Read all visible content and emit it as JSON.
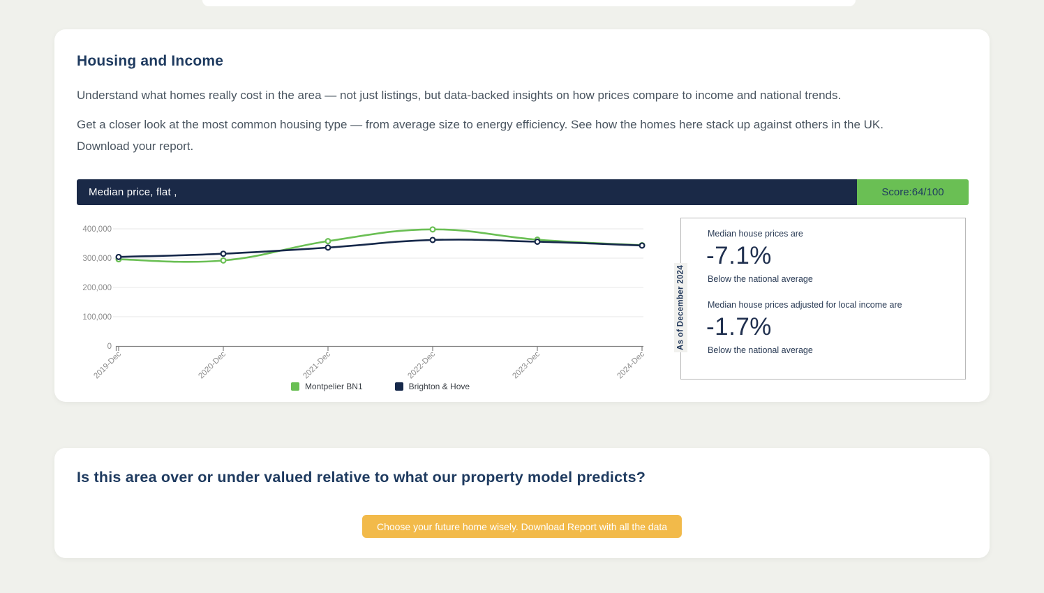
{
  "page": {
    "background": "#f0f1ec"
  },
  "housing_card": {
    "title": "Housing and Income",
    "intro_paragraphs": [
      "Understand what homes really cost in the area — not just listings, but data-backed insights on how prices compare to income and national trends.",
      "Get a closer look at the most common housing type — from average size to energy efficiency. See how the homes here stack up against others in the UK. Download your report."
    ],
    "chart_bar": {
      "label": "Median price, flat ,",
      "score_label": "Score:64/100",
      "bar_color": "#1a2947",
      "score_color": "#6abf54"
    },
    "stats_panel": {
      "as_of_label": "As of December 2024",
      "stats": [
        {
          "intro": "Median house prices are",
          "value": "-7.1%",
          "caption": "Below the national average"
        },
        {
          "intro": "Median house prices adjusted for local income are",
          "value": "-1.7%",
          "caption": "Below the national average"
        }
      ]
    }
  },
  "chart_data": {
    "type": "line",
    "title": "Median price, flat",
    "categories": [
      "2019-Dec",
      "2020-Dec",
      "2021-Dec",
      "2022-Dec",
      "2023-Dec",
      "2024-Dec"
    ],
    "series": [
      {
        "name": "Montpelier BN1",
        "color": "#6abf54",
        "values": [
          296000,
          292000,
          358000,
          398000,
          363000,
          344000
        ]
      },
      {
        "name": "Brighton & Hove",
        "color": "#16284a",
        "values": [
          304000,
          315000,
          336000,
          362000,
          356000,
          343000
        ]
      }
    ],
    "yticks": [
      0,
      100000,
      200000,
      300000,
      400000
    ],
    "ytick_labels": [
      "0",
      "100,000",
      "200,000",
      "300,000",
      "400,000"
    ],
    "ylim": [
      0,
      480000
    ],
    "grid": true,
    "legend_position": "bottom",
    "axis_color": "#808080",
    "grid_color": "#e7e7e7",
    "tick_label_color": "#8b8b8b"
  },
  "valuation_card": {
    "title": "Is this area over or under valued relative to what our property model predicts?",
    "button_label": "Choose your future home wisely. Download Report with all the data",
    "button_color": "#f2ba4a"
  }
}
